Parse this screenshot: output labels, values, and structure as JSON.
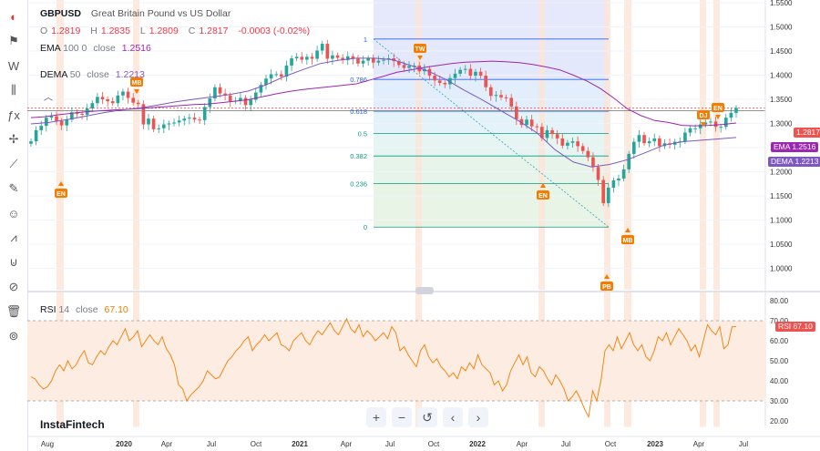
{
  "header": {
    "symbol": "GBPUSD",
    "description": "Great Britain Pound vs US Dollar",
    "ohlc": {
      "o_label": "O",
      "o": "1.2819",
      "h_label": "H",
      "h": "1.2835",
      "l_label": "L",
      "l": "1.2809",
      "c_label": "C",
      "c": "1.2817",
      "change": "-0.0003 (-0.02%)"
    },
    "ema": {
      "name": "EMA",
      "params": "100 0",
      "source": "close",
      "value": "1.2516"
    },
    "dema": {
      "name": "DEMA",
      "params": "50",
      "source": "close",
      "value": "1.2213"
    },
    "rsi": {
      "name": "RSI",
      "params": "14",
      "source": "close",
      "value": "67.10"
    }
  },
  "price_tags": {
    "last": "1.2817",
    "ema_label": "EMA",
    "ema": "1.2516",
    "dema_label": "DEMA",
    "dema": "1.2213",
    "rsi_label": "RSI",
    "rsi": "67.10"
  },
  "watermark": "InstaFintech",
  "colors": {
    "up": "#26a69a",
    "down": "#ef5350",
    "ema": "#9c27b0",
    "dema": "#7e57c2",
    "rsi": "#f57c00",
    "marker": "#f57c00",
    "fib": "#2962ff"
  },
  "toolbar_icons": [
    "tv-logo-icon",
    "flag-icon",
    "indicators-icon",
    "bars-icon",
    "formula-icon",
    "crosshair-icon",
    "trend-lines-icon",
    "brush-icon",
    "emoji-icon",
    "patterns-icon",
    "magnet-icon",
    "eye-off-icon",
    "trash-icon",
    "lock-icon"
  ],
  "controls": [
    "zoom-in-icon",
    "zoom-out-icon",
    "reset-icon",
    "scroll-left-icon",
    "scroll-right-icon"
  ],
  "chart_data": [
    {
      "type": "candlestick",
      "title": "GBPUSD",
      "x_ticks": [
        "Aug",
        "2020",
        "Apr",
        "Jul",
        "Oct",
        "2021",
        "Apr",
        "Jul",
        "Oct",
        "2022",
        "Apr",
        "Jul",
        "Oct",
        "2023",
        "Apr",
        "Jul"
      ],
      "y_ticks": [
        "1.5500",
        "1.5000",
        "1.4500",
        "1.4000",
        "1.3500",
        "1.3000",
        "1.2500",
        "1.2000",
        "1.1500",
        "1.1000",
        "1.0500",
        "1.0000"
      ],
      "ylim": [
        0.955,
        1.555
      ],
      "close_series": [
        1.213,
        1.236,
        1.245,
        1.262,
        1.265,
        1.255,
        1.246,
        1.258,
        1.273,
        1.27,
        1.268,
        1.281,
        1.292,
        1.305,
        1.3,
        1.296,
        1.292,
        1.308,
        1.316,
        1.303,
        1.293,
        1.29,
        1.248,
        1.26,
        1.238,
        1.24,
        1.248,
        1.25,
        1.252,
        1.256,
        1.26,
        1.262,
        1.258,
        1.257,
        1.284,
        1.302,
        1.325,
        1.312,
        1.308,
        1.296,
        1.297,
        1.303,
        1.288,
        1.299,
        1.314,
        1.33,
        1.343,
        1.352,
        1.352,
        1.347,
        1.37,
        1.385,
        1.388,
        1.382,
        1.388,
        1.384,
        1.401,
        1.415,
        1.384,
        1.391,
        1.386,
        1.381,
        1.389,
        1.384,
        1.374,
        1.38,
        1.385,
        1.376,
        1.38,
        1.382,
        1.385,
        1.379,
        1.371,
        1.365,
        1.369,
        1.37,
        1.358,
        1.363,
        1.349,
        1.339,
        1.334,
        1.331,
        1.344,
        1.353,
        1.361,
        1.363,
        1.349,
        1.357,
        1.349,
        1.325,
        1.307,
        1.309,
        1.304,
        1.303,
        1.285,
        1.259,
        1.247,
        1.258,
        1.244,
        1.243,
        1.22,
        1.236,
        1.228,
        1.219,
        1.204,
        1.21,
        1.213,
        1.203,
        1.193,
        1.18,
        1.16,
        1.133,
        1.085,
        1.117,
        1.132,
        1.136,
        1.155,
        1.187,
        1.212,
        1.226,
        1.209,
        1.213,
        1.219,
        1.203,
        1.209,
        1.206,
        1.212,
        1.213,
        1.231,
        1.24,
        1.24,
        1.248,
        1.252,
        1.254,
        1.243,
        1.243,
        1.262,
        1.272,
        1.282
      ],
      "ema_100": [
        1.262,
        1.264,
        1.268,
        1.271,
        1.274,
        1.276,
        1.278,
        1.279,
        1.281,
        1.283,
        1.285,
        1.287,
        1.289,
        1.29,
        1.293,
        1.296,
        1.299,
        1.305,
        1.311,
        1.316,
        1.32,
        1.323,
        1.326,
        1.329,
        1.332,
        1.34,
        1.348,
        1.356,
        1.361,
        1.366,
        1.37,
        1.374,
        1.377,
        1.378,
        1.379,
        1.378,
        1.376,
        1.372,
        1.367,
        1.361,
        1.35,
        1.338,
        1.322,
        1.302,
        1.28,
        1.266,
        1.256,
        1.252,
        1.246,
        1.245,
        1.246,
        1.248,
        1.251
      ],
      "dema_50": [
        1.249,
        1.252,
        1.258,
        1.265,
        1.272,
        1.278,
        1.282,
        1.288,
        1.295,
        1.3,
        1.305,
        1.31,
        1.317,
        1.33,
        1.347,
        1.361,
        1.374,
        1.381,
        1.385,
        1.385,
        1.382,
        1.37,
        1.358,
        1.34,
        1.318,
        1.298,
        1.276,
        1.255,
        1.23,
        1.195,
        1.17,
        1.16,
        1.165,
        1.175,
        1.19,
        1.205,
        1.212,
        1.215,
        1.218,
        1.221
      ],
      "fibonacci": {
        "levels": [
          "1",
          "0.786",
          "0.618",
          "0.5",
          "0.382",
          "0.236",
          "0"
        ],
        "prices": [
          1.4249,
          1.3412,
          1.2754,
          1.229,
          1.1827,
          1.1253,
          1.0354
        ]
      },
      "event_markers": [
        "EN",
        "MB",
        "TW",
        "EN",
        "MB",
        "PB",
        "DJ",
        "EN"
      ]
    },
    {
      "type": "line",
      "title": "RSI",
      "y_ticks": [
        "80.00",
        "70.00",
        "60.00",
        "50.00",
        "40.00",
        "30.00",
        "20.00"
      ],
      "ylim": [
        17,
        83
      ],
      "bands": [
        30,
        70
      ],
      "values": [
        42,
        41,
        38,
        36,
        37,
        40,
        45,
        48,
        45,
        50,
        46,
        48,
        52,
        55,
        49,
        48,
        52,
        55,
        53,
        57,
        60,
        58,
        62,
        66,
        60,
        62,
        65,
        57,
        60,
        63,
        60,
        58,
        62,
        56,
        53,
        48,
        38,
        36,
        30,
        33,
        35,
        37,
        40,
        45,
        43,
        41,
        42,
        46,
        50,
        52,
        55,
        57,
        60,
        62,
        55,
        58,
        60,
        63,
        60,
        62,
        64,
        58,
        57,
        55,
        60,
        62,
        64,
        60,
        58,
        62,
        65,
        63,
        66,
        69,
        65,
        63,
        67,
        71,
        66,
        64,
        68,
        62,
        65,
        63,
        60,
        62,
        64,
        61,
        67,
        64,
        55,
        57,
        53,
        50,
        47,
        55,
        58,
        52,
        49,
        51,
        47,
        45,
        42,
        44,
        41,
        47,
        45,
        49,
        46,
        53,
        48,
        46,
        44,
        38,
        40,
        35,
        38,
        45,
        49,
        53,
        48,
        52,
        44,
        42,
        47,
        45,
        41,
        38,
        43,
        40,
        36,
        30,
        32,
        35,
        31,
        26,
        22,
        35,
        30,
        40,
        55,
        58,
        55,
        62,
        56,
        60,
        64,
        58,
        55,
        58,
        52,
        50,
        55,
        62,
        60,
        64,
        58,
        62,
        66,
        63,
        60,
        55,
        58,
        52,
        60,
        68,
        65,
        63,
        67,
        56,
        58,
        67,
        67
      ]
    }
  ]
}
